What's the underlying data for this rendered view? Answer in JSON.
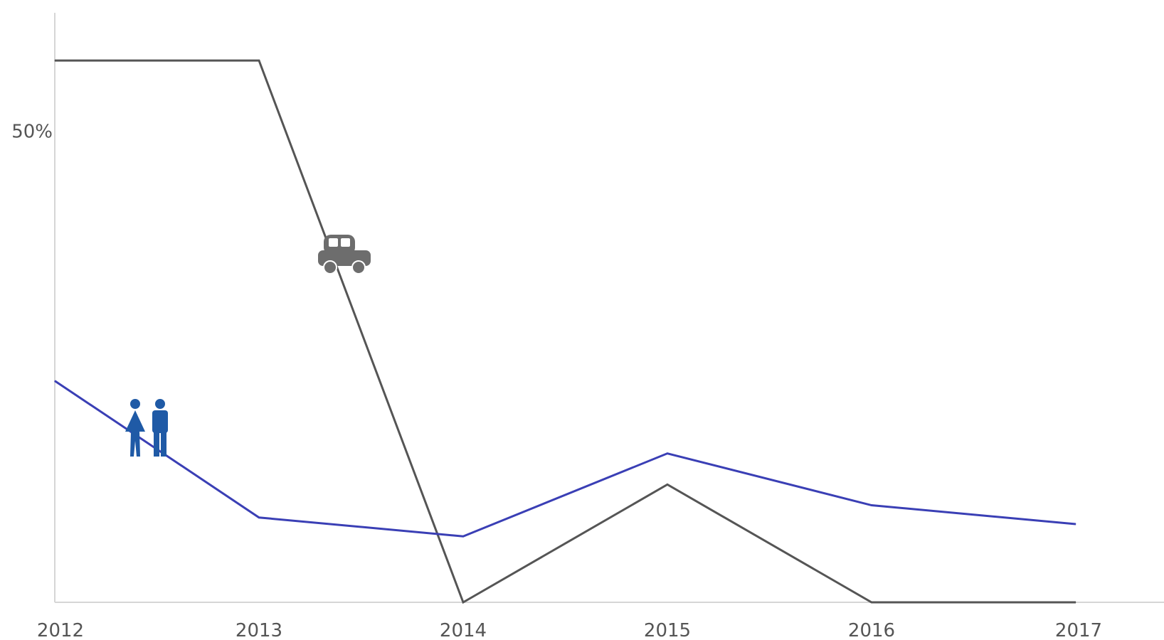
{
  "chart_data": {
    "type": "line",
    "x": [
      "2012",
      "2013",
      "2014",
      "2015",
      "2016",
      "2017"
    ],
    "y_tick_labels": [
      {
        "value": 50,
        "label": "50%"
      }
    ],
    "ylim": [
      0,
      60
    ],
    "series": [
      {
        "key": "car",
        "color": "#555555",
        "icon": "car-icon",
        "values": [
          57.5,
          57.5,
          0,
          12.5,
          0,
          0
        ]
      },
      {
        "key": "people",
        "color": "#3a3fb5",
        "icon": "people-icon",
        "values": [
          23.5,
          9,
          7,
          15.8,
          10.3,
          8.3
        ]
      }
    ],
    "grid": false,
    "legend": "inline icons"
  }
}
